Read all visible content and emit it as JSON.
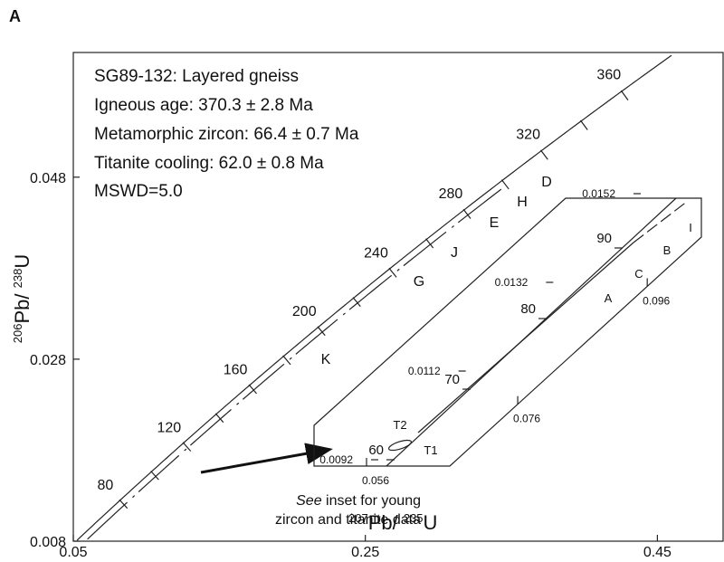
{
  "panel": "A",
  "chart_data": {
    "type": "concordia",
    "xlabel_parts": [
      "207",
      "Pb/ ",
      "235",
      "U"
    ],
    "ylabel_parts": [
      "206",
      "Pb/ ",
      "238",
      "U"
    ],
    "xlim": [
      0.05,
      0.495
    ],
    "ylim": [
      0.008,
      0.0617
    ],
    "xticks": [
      0.05,
      0.25,
      0.45
    ],
    "yticks": [
      0.008,
      0.028,
      0.048
    ],
    "concordia_ages": [
      80,
      120,
      160,
      200,
      240,
      280,
      320,
      360
    ],
    "info": [
      "SG89-132: Layered gneiss",
      "Igneous age: 370.3 ± 2.8 Ma",
      "Metamorphic zircon: 66.4 ± 0.7 Ma",
      "Titanite cooling: 62.0 ± 0.8 Ma",
      "MSWD=5.0"
    ],
    "point_labels": [
      "K",
      "G",
      "J",
      "E",
      "H",
      "D"
    ],
    "note_parts": [
      "See",
      " inset for young",
      "zircon and titanite data"
    ],
    "inset": {
      "xticks": [
        0.056,
        0.076,
        0.096
      ],
      "yticks": [
        0.0092,
        0.0112,
        0.0132,
        0.0152
      ],
      "concordia_ages": [
        60,
        70,
        80,
        90
      ],
      "point_labels": [
        "T1",
        "T2",
        "A",
        "B",
        "C",
        "I"
      ]
    }
  }
}
